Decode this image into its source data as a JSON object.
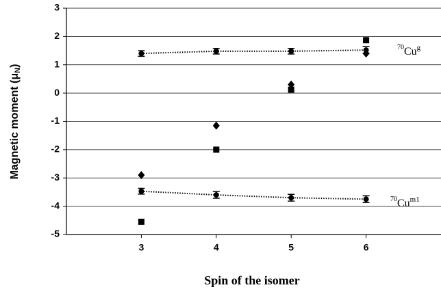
{
  "chart_data": {
    "type": "scatter",
    "x_label": "Spin of the isomer",
    "y_label": {
      "text": "Magnetic moment (μ",
      "sub": "N",
      "end": ")"
    },
    "annotations": [
      {
        "mass": "70",
        "element": "Cu",
        "state": "g"
      },
      {
        "mass": "70",
        "element": "Cu",
        "state": "m1"
      }
    ],
    "x": [
      3,
      4,
      5,
      6
    ],
    "xlim": [
      2,
      7
    ],
    "xticks": [
      3,
      4,
      5,
      6
    ],
    "ylim": [
      -5,
      3
    ],
    "yticks": [
      -5,
      -4,
      -3,
      -2,
      -1,
      0,
      1,
      2,
      3
    ],
    "grid": true,
    "series": [
      {
        "marker": "circle",
        "color": "#000000",
        "line_style": "dotted",
        "values": [
          1.4,
          1.48,
          1.48,
          1.52
        ],
        "errors": [
          0.1,
          0.1,
          0.1,
          0.12
        ]
      },
      {
        "marker": "circle",
        "color": "#000000",
        "line_style": "dotted",
        "values": [
          -3.47,
          -3.6,
          -3.7,
          -3.75
        ],
        "errors": [
          0.1,
          0.12,
          0.12,
          0.12
        ]
      },
      {
        "marker": "diamond",
        "color": "#000000",
        "values": [
          -2.9,
          -1.15,
          0.3,
          1.4
        ]
      },
      {
        "marker": "square",
        "color": "#000000",
        "values": [
          -4.55,
          -2.0,
          0.12,
          1.87
        ]
      }
    ]
  }
}
